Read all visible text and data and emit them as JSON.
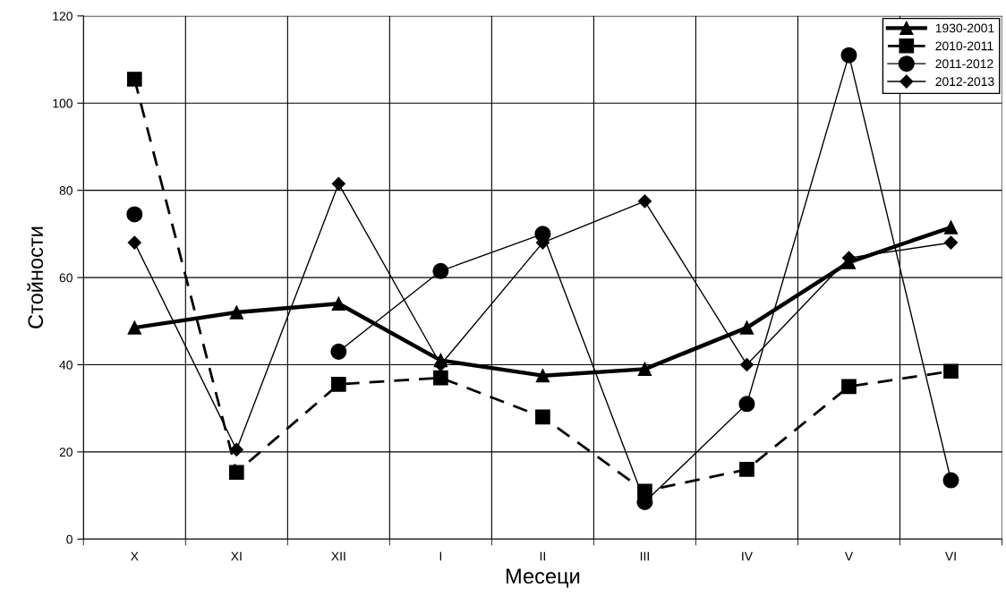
{
  "chart_data": {
    "type": "line",
    "xlabel": "Месеци",
    "ylabel": "Стойности",
    "categories": [
      "X",
      "XI",
      "XII",
      "I",
      "II",
      "III",
      "IV",
      "V",
      "VI"
    ],
    "ylim": [
      0,
      120
    ],
    "yticks": [
      0,
      20,
      40,
      60,
      80,
      100,
      120
    ],
    "grid": true,
    "legend": "top right",
    "series": [
      {
        "name": "1930-2001",
        "color": "#000000",
        "marker": "triangle",
        "line_style": "solid",
        "values": [
          48.5,
          52,
          54,
          41,
          37.5,
          39,
          48.5,
          63.5,
          71.5
        ]
      },
      {
        "name": "2010-2011",
        "color": "#000000",
        "marker": "square",
        "line_style": "dashed",
        "values": [
          105.5,
          15.3,
          35.5,
          37,
          28,
          11,
          16,
          35,
          38.5
        ]
      },
      {
        "name": "2011-2012",
        "color": "#000000",
        "marker": "circle",
        "line_style": "solid",
        "values": [
          74.5,
          null,
          43,
          61.5,
          70,
          8.5,
          31,
          111,
          13.5
        ]
      },
      {
        "name": "2012-2013",
        "color": "#000000",
        "marker": "diamond",
        "line_style": "solid",
        "values": [
          68,
          20.5,
          81.5,
          40,
          68,
          77.5,
          40,
          64.5,
          68
        ]
      }
    ]
  }
}
